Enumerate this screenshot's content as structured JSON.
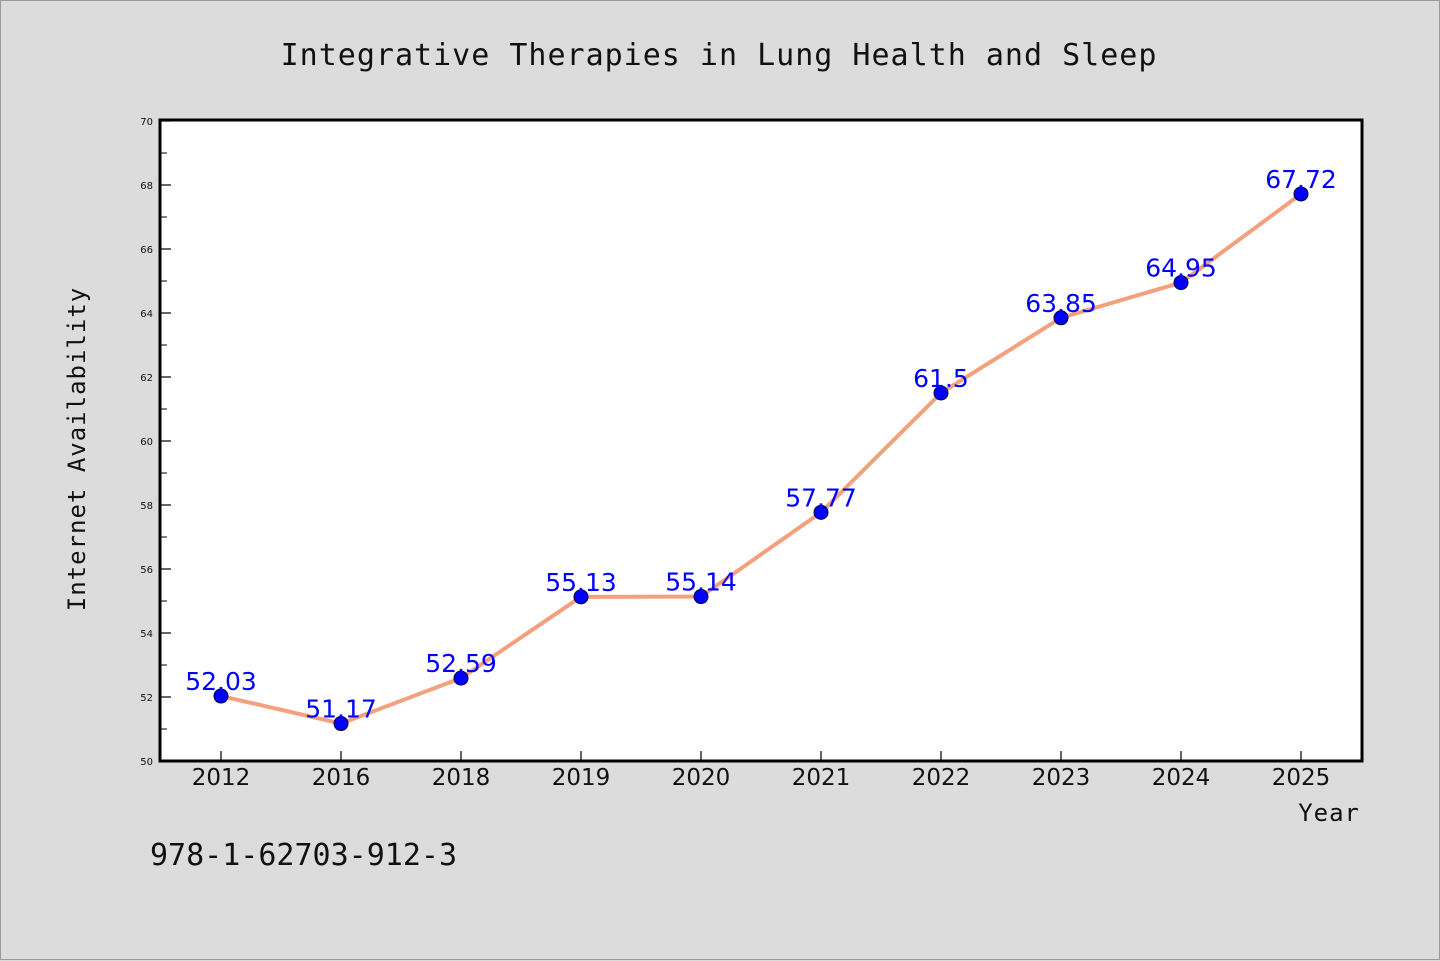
{
  "chart_data": {
    "type": "line",
    "title": "Integrative Therapies in Lung Health and Sleep",
    "xlabel": "Year",
    "ylabel": "Internet Availability",
    "categories": [
      "2012",
      "2016",
      "2018",
      "2019",
      "2020",
      "2021",
      "2022",
      "2023",
      "2024",
      "2025"
    ],
    "values": [
      52.03,
      51.17,
      52.59,
      55.13,
      55.14,
      57.77,
      61.5,
      63.85,
      64.95,
      67.72
    ],
    "data_labels": [
      "52.03",
      "51.17",
      "52.59",
      "55.13",
      "55.14",
      "57.77",
      "61.5",
      "63.85",
      "64.95",
      "67.72"
    ],
    "ylim": [
      50,
      70
    ],
    "yticks": [
      50,
      52,
      54,
      56,
      58,
      60,
      62,
      64,
      66,
      68,
      70
    ],
    "grid": false,
    "legend": "none",
    "line_color": "#f4a07c",
    "marker_color": "#0000ff",
    "label_color": "#0000ff"
  },
  "annotation": {
    "isbn": "978-1-62703-912-3"
  }
}
